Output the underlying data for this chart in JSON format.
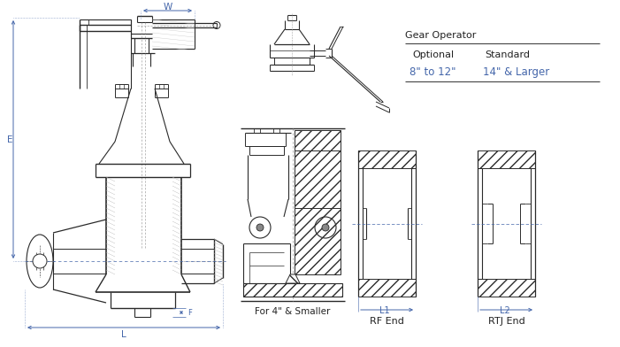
{
  "bg_color": "#ffffff",
  "line_color": "#2a2a2a",
  "blue_color": "#4466aa",
  "text_color": "#222222",
  "dim_color": "#4466aa",
  "gear_operator_title": "Gear Operator",
  "col1_header": "Optional",
  "col2_header": "Standard",
  "col1_val": "8\" to 12\"",
  "col2_val": "14\" & Larger",
  "label_W": "W",
  "label_E": "E",
  "label_L": "L",
  "label_L1": "L1",
  "label_L2": "L2",
  "label_for4": "For 4\" & Smaller",
  "label_rf": "RF End",
  "label_rtj": "RTJ End",
  "figsize": [
    7.01,
    3.92
  ],
  "dpi": 100
}
